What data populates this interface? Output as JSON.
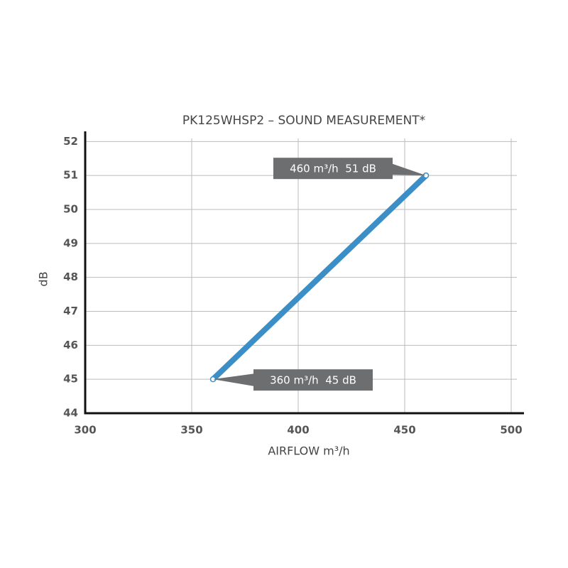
{
  "chart_data": {
    "type": "line",
    "title": "PK125WHSP2 – SOUND MEASUREMENT*",
    "x_label": "AIRFLOW m³/h",
    "y_label": "dB",
    "x": [
      360,
      460
    ],
    "series": [
      {
        "color": "#3b8fc6",
        "values": [
          45,
          51
        ],
        "value_labels": [
          "360 m³/h  45 dB",
          "460 m³/h  51 dB"
        ]
      }
    ],
    "xlim": [
      300,
      506
    ],
    "xticks": [
      300,
      350,
      400,
      450,
      500
    ],
    "ylim": [
      44,
      52.3
    ],
    "yticks": [
      44,
      45,
      46,
      47,
      48,
      49,
      50,
      51,
      52
    ],
    "grid": true
  }
}
